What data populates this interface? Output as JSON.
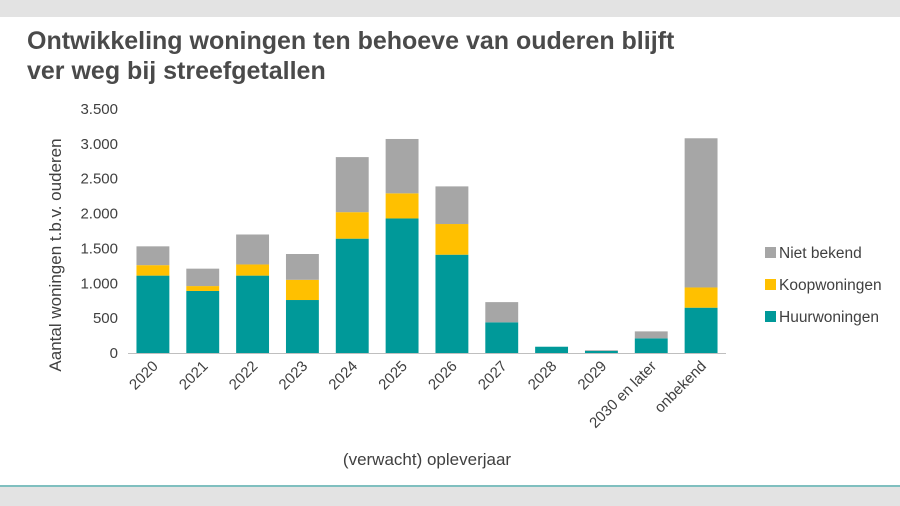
{
  "page": {
    "title_line1": "Ontwikkeling woningen ten behoeve van ouderen blijft",
    "title_line2": "ver weg bij streefgetallen"
  },
  "chart_data": {
    "type": "bar",
    "stacked": true,
    "categories": [
      "2020",
      "2021",
      "2022",
      "2023",
      "2024",
      "2025",
      "2026",
      "2027",
      "2028",
      "2029",
      "2030 en later",
      "onbekend"
    ],
    "series": [
      {
        "name": "Huurwoningen",
        "color": "#009999",
        "values": [
          1110,
          890,
          1110,
          760,
          1640,
          1930,
          1410,
          440,
          90,
          30,
          210,
          650
        ]
      },
      {
        "name": "Koopwoningen",
        "color": "#ffc000",
        "values": [
          150,
          70,
          160,
          290,
          380,
          360,
          440,
          0,
          0,
          0,
          0,
          290
        ]
      },
      {
        "name": "Niet bekend",
        "color": "#a6a6a6",
        "values": [
          270,
          250,
          430,
          370,
          790,
          780,
          540,
          290,
          0,
          10,
          100,
          2140
        ]
      }
    ],
    "ylabel": "Aantal woningen t.b.v. ouderen",
    "xlabel": "(verwacht) opleverjaar",
    "ylim": [
      0,
      3500
    ],
    "yticks": [
      0,
      500,
      1000,
      1500,
      2000,
      2500,
      3000,
      3500
    ],
    "ytick_labels": [
      "0",
      "500",
      "1.000",
      "1.500",
      "2.000",
      "2.500",
      "3.000",
      "3.500"
    ],
    "grid": false,
    "legend_position": "right",
    "legend_order": [
      "Niet bekend",
      "Koopwoningen",
      "Huurwoningen"
    ]
  }
}
